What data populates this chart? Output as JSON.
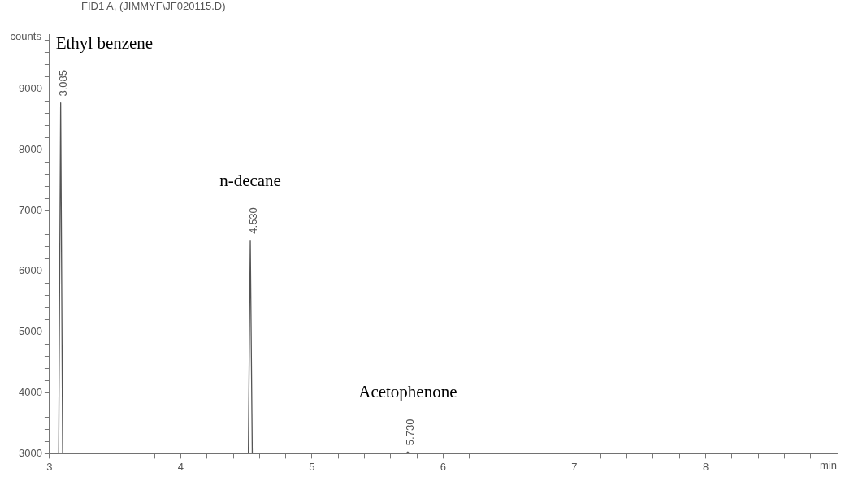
{
  "chart_data": {
    "type": "line",
    "title": "FID1 A, (JIMMYF\\JF020115.D)",
    "xlabel": "min",
    "ylabel": "counts",
    "x": [
      3,
      3.07,
      3.085,
      3.1,
      4.515,
      4.53,
      4.545,
      5.72,
      5.73,
      5.74,
      9
    ],
    "series": [
      {
        "color": "#555555",
        "values": [
          3010,
          3010,
          8770,
          3010,
          3010,
          6510,
          3010,
          3010,
          3030,
          3010,
          3010
        ]
      }
    ],
    "xlim": [
      3,
      9
    ],
    "xticks": [
      3,
      {
        "value": 3.2,
        "label": null
      },
      {
        "value": 3.4,
        "label": null
      },
      {
        "value": 3.6,
        "label": null
      },
      {
        "value": 3.8,
        "label": null
      },
      4,
      {
        "value": 4.2,
        "label": null
      },
      {
        "value": 4.4,
        "label": null
      },
      {
        "value": 4.6,
        "label": null
      },
      {
        "value": 4.8,
        "label": null
      },
      5,
      {
        "value": 5.2,
        "label": null
      },
      {
        "value": 5.4,
        "label": null
      },
      {
        "value": 5.6,
        "label": null
      },
      {
        "value": 5.8,
        "label": null
      },
      6,
      {
        "value": 6.2,
        "label": null
      },
      {
        "value": 6.4,
        "label": null
      },
      {
        "value": 6.6,
        "label": null
      },
      {
        "value": 6.8,
        "label": null
      },
      7,
      {
        "value": 7.2,
        "label": null
      },
      {
        "value": 7.4,
        "label": null
      },
      {
        "value": 7.6,
        "label": null
      },
      {
        "value": 7.8,
        "label": null
      },
      8,
      {
        "value": 8.2,
        "label": null
      },
      {
        "value": 8.4,
        "label": null
      },
      {
        "value": 8.6,
        "label": null
      },
      {
        "value": 8.8,
        "label": null
      }
    ],
    "ylim": [
      3000,
      9900
    ],
    "yticks": [
      3000,
      {
        "value": 3200,
        "label": null
      },
      {
        "value": 3400,
        "label": null
      },
      {
        "value": 3600,
        "label": null
      },
      {
        "value": 3800,
        "label": null
      },
      4000,
      {
        "value": 4200,
        "label": null
      },
      {
        "value": 4400,
        "label": null
      },
      {
        "value": 4600,
        "label": null
      },
      {
        "value": 4800,
        "label": null
      },
      5000,
      {
        "value": 5200,
        "label": null
      },
      {
        "value": 5400,
        "label": null
      },
      {
        "value": 5600,
        "label": null
      },
      {
        "value": 5800,
        "label": null
      },
      6000,
      {
        "value": 6200,
        "label": null
      },
      {
        "value": 6400,
        "label": null
      },
      {
        "value": 6600,
        "label": null
      },
      {
        "value": 6800,
        "label": null
      },
      7000,
      {
        "value": 7200,
        "label": null
      },
      {
        "value": 7400,
        "label": null
      },
      {
        "value": 7600,
        "label": null
      },
      {
        "value": 7800,
        "label": null
      },
      8000,
      {
        "value": 8200,
        "label": null
      },
      {
        "value": 8400,
        "label": null
      },
      {
        "value": 8600,
        "label": null
      },
      {
        "value": 8800,
        "label": null
      },
      9000,
      {
        "value": 9200,
        "label": null
      },
      {
        "value": 9400,
        "label": null
      },
      {
        "value": 9600,
        "label": null
      },
      {
        "value": 9800,
        "label": null
      }
    ],
    "marker": "none",
    "annotations": [
      {
        "text": "Ethyl benzene",
        "x": 3.085,
        "y": 8770
      },
      {
        "text": "3.085",
        "x": 3.085,
        "y": 8770
      },
      {
        "text": "n-decane",
        "x": 4.53,
        "y": 6510
      },
      {
        "text": "4.530",
        "x": 4.53,
        "y": 6510
      },
      {
        "text": "Acetophenone",
        "x": 5.73,
        "y": 3030
      },
      {
        "text": "5.730",
        "x": 5.73,
        "y": 3030
      }
    ]
  }
}
